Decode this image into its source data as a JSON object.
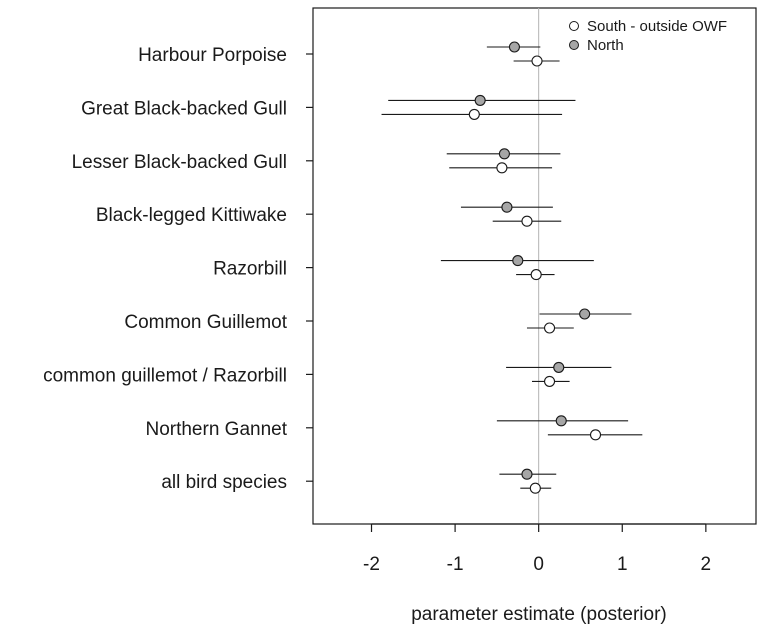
{
  "chart_data": {
    "type": "scatter",
    "xlabel": "parameter estimate (posterior)",
    "xlim": [
      -2.7,
      2.6
    ],
    "xticks": [
      -2,
      -1,
      0,
      1,
      2
    ],
    "xtick_labels": [
      "-2",
      "-1",
      "0",
      "1",
      "2"
    ],
    "reference_line_x": 0,
    "grid": false,
    "legend_position": "top-right",
    "categories": [
      "Harbour Porpoise",
      "Great Black-backed Gull",
      "Lesser Black-backed Gull",
      "Black-legged Kittiwake",
      "Razorbill",
      "Common Guillemot",
      "common guillemot / Razorbill",
      "Northern Gannet",
      "all bird species"
    ],
    "series": [
      {
        "name": "South - outside OWF",
        "color": "#ffffff",
        "estimates": [
          -0.02,
          -0.77,
          -0.44,
          -0.14,
          -0.03,
          0.13,
          0.13,
          0.68,
          -0.04
        ],
        "lower": [
          -0.3,
          -1.88,
          -1.07,
          -0.55,
          -0.27,
          -0.14,
          -0.08,
          0.11,
          -0.22
        ],
        "upper": [
          0.25,
          0.28,
          0.16,
          0.27,
          0.19,
          0.42,
          0.37,
          1.24,
          0.15
        ]
      },
      {
        "name": "North",
        "color": "#a6a6a6",
        "estimates": [
          -0.29,
          -0.7,
          -0.41,
          -0.38,
          -0.25,
          0.55,
          0.24,
          0.27,
          -0.14
        ],
        "lower": [
          -0.62,
          -1.8,
          -1.1,
          -0.93,
          -1.17,
          0.01,
          -0.39,
          -0.5,
          -0.47
        ],
        "upper": [
          0.02,
          0.44,
          0.26,
          0.17,
          0.66,
          1.11,
          0.87,
          1.07,
          0.21
        ]
      }
    ]
  }
}
